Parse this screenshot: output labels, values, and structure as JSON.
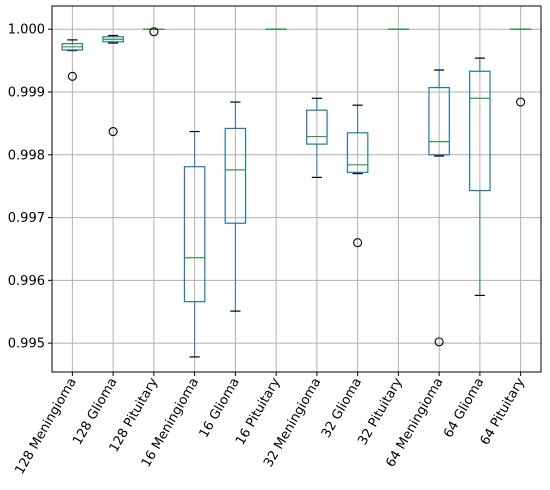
{
  "chart_data": {
    "type": "box",
    "title": "",
    "xlabel": "",
    "ylabel": "",
    "ylim": [
      0.99454,
      1.00037
    ],
    "yticks": [
      "0.995",
      "0.996",
      "0.997",
      "0.998",
      "0.999",
      "1.000"
    ],
    "ytick_values": [
      0.995,
      0.996,
      0.997,
      0.998,
      0.999,
      1.0
    ],
    "grid": true,
    "legend": "none",
    "colors": {
      "box": "#1f77b4",
      "median": "#2ca02c",
      "grid": "#b0b0b0",
      "axis": "#000000"
    },
    "categories": [
      "128 Meningioma",
      "128 Glioma",
      "128 Pituitary",
      "16 Meningioma",
      "16 Glioma",
      "16 Pituitary",
      "32 Meningioma",
      "32 Glioma",
      "32 Pituitary",
      "64 Meningioma",
      "64 Glioma",
      "64 Pituitary"
    ],
    "boxes": [
      {
        "whisker_low": 0.99966,
        "q1": 0.99967,
        "median": 0.99972,
        "q3": 0.99977,
        "whisker_high": 0.99983,
        "outliers": [
          0.99925
        ]
      },
      {
        "whisker_low": 0.99978,
        "q1": 0.9998,
        "median": 0.99984,
        "q3": 0.99988,
        "whisker_high": 0.9999,
        "outliers": [
          0.99837
        ]
      },
      {
        "whisker_low": 1.0,
        "q1": 1.0,
        "median": 1.0,
        "q3": 1.0,
        "whisker_high": 1.0,
        "outliers": [
          0.99996
        ]
      },
      {
        "whisker_low": 0.99478,
        "q1": 0.99566,
        "median": 0.99636,
        "q3": 0.99781,
        "whisker_high": 0.99837,
        "outliers": []
      },
      {
        "whisker_low": 0.99551,
        "q1": 0.99691,
        "median": 0.99776,
        "q3": 0.99842,
        "whisker_high": 0.99884,
        "outliers": []
      },
      {
        "whisker_low": 1.0,
        "q1": 1.0,
        "median": 1.0,
        "q3": 1.0,
        "whisker_high": 1.0,
        "outliers": []
      },
      {
        "whisker_low": 0.99764,
        "q1": 0.99817,
        "median": 0.99829,
        "q3": 0.99871,
        "whisker_high": 0.9989,
        "outliers": []
      },
      {
        "whisker_low": 0.9977,
        "q1": 0.99772,
        "median": 0.99784,
        "q3": 0.99835,
        "whisker_high": 0.99879,
        "outliers": [
          0.9966
        ]
      },
      {
        "whisker_low": 1.0,
        "q1": 1.0,
        "median": 1.0,
        "q3": 1.0,
        "whisker_high": 1.0,
        "outliers": []
      },
      {
        "whisker_low": 0.99798,
        "q1": 0.998,
        "median": 0.99821,
        "q3": 0.99907,
        "whisker_high": 0.99935,
        "outliers": [
          0.99502
        ]
      },
      {
        "whisker_low": 0.99576,
        "q1": 0.99743,
        "median": 0.9989,
        "q3": 0.99933,
        "whisker_high": 0.99954,
        "outliers": []
      },
      {
        "whisker_low": 1.0,
        "q1": 1.0,
        "median": 1.0,
        "q3": 1.0,
        "whisker_high": 1.0,
        "outliers": [
          0.99884
        ]
      }
    ]
  }
}
